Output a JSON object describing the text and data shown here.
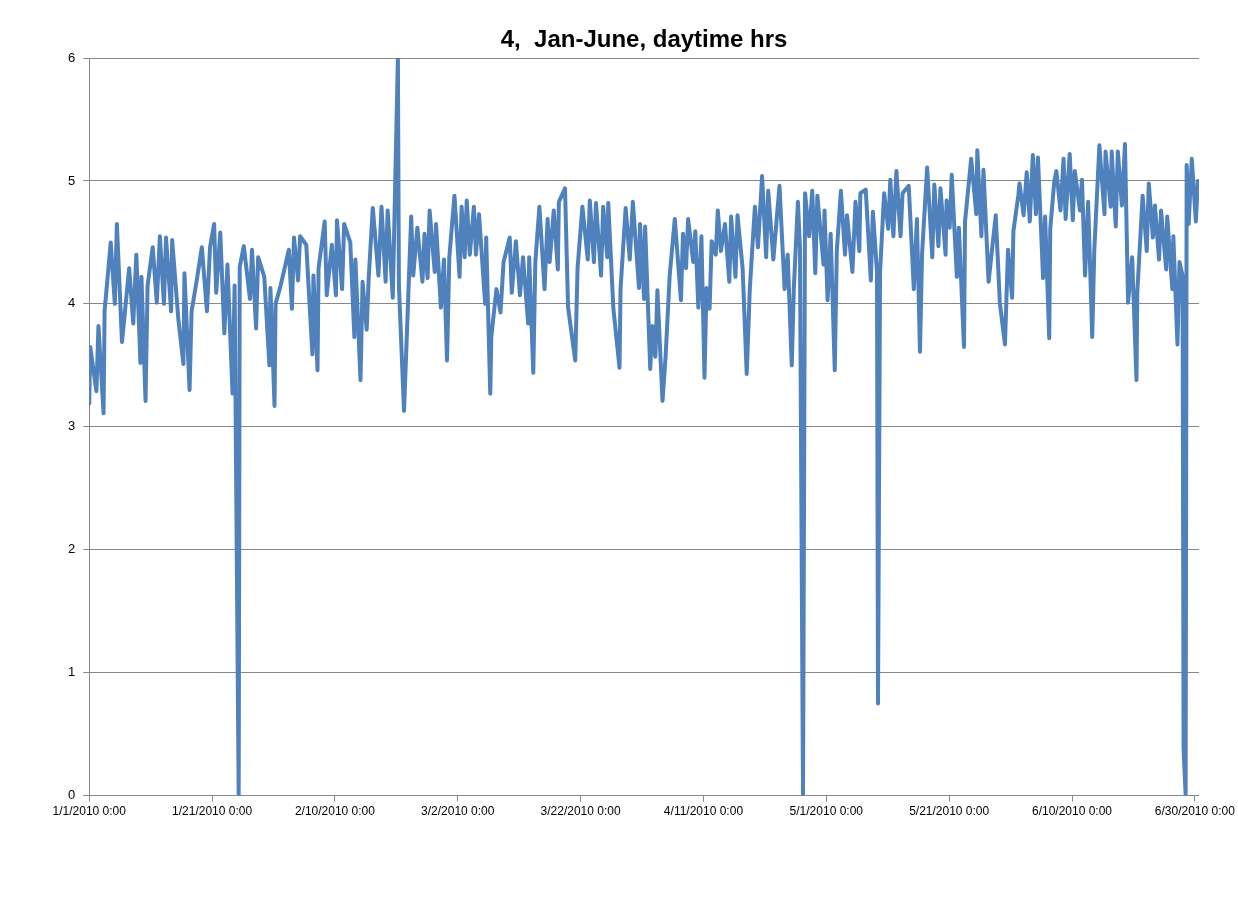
{
  "chart_data": {
    "type": "line",
    "title": "4,  Jan-June, daytime hrs",
    "color": "#4f81bd",
    "grid": "y",
    "marker": "none",
    "line_style": "solid",
    "xlim": [
      "2010-01-01T00:00",
      "2010-06-30T16:00"
    ],
    "xticks": [
      {
        "value": "2010-01-01T00:00",
        "label": "1/1/2010 0:00"
      },
      {
        "value": "2010-01-21T00:00",
        "label": "1/21/2010 0:00"
      },
      {
        "value": "2010-02-10T00:00",
        "label": "2/10/2010 0:00"
      },
      {
        "value": "2010-03-02T00:00",
        "label": "3/2/2010 0:00"
      },
      {
        "value": "2010-03-22T00:00",
        "label": "3/22/2010 0:00"
      },
      {
        "value": "2010-04-11T00:00",
        "label": "4/11/2010 0:00"
      },
      {
        "value": "2010-05-01T00:00",
        "label": "5/1/2010 0:00"
      },
      {
        "value": "2010-05-21T00:00",
        "label": "5/21/2010 0:00"
      },
      {
        "value": "2010-06-10T00:00",
        "label": "6/10/2010 0:00"
      },
      {
        "value": "2010-06-30T00:00",
        "label": "6/30/2010 0:00"
      }
    ],
    "ylim": [
      0,
      6
    ],
    "yticks": [
      0,
      1,
      2,
      3,
      4,
      5,
      6
    ],
    "x": [
      "2010-01-01T00:00",
      "2010-01-01T04:00",
      "2010-01-02T04:00",
      "2010-01-02T12:00",
      "2010-01-03T08:00",
      "2010-01-03T12:00",
      "2010-01-04T12:00",
      "2010-01-05T04:00",
      "2010-01-05T12:00",
      "2010-01-06T08:00",
      "2010-01-07T12:00",
      "2010-01-08T04:00",
      "2010-01-08T16:00",
      "2010-01-09T08:00",
      "2010-01-09T12:00",
      "2010-01-10T04:00",
      "2010-01-10T12:00",
      "2010-01-11T08:00",
      "2010-01-12T00:00",
      "2010-01-12T12:00",
      "2010-01-13T04:00",
      "2010-01-13T12:00",
      "2010-01-14T08:00",
      "2010-01-14T12:00",
      "2010-01-15T12:00",
      "2010-01-16T08:00",
      "2010-01-16T12:00",
      "2010-01-17T08:00",
      "2010-01-17T16:00",
      "2010-01-18T12:00",
      "2010-01-19T08:00",
      "2010-01-20T04:00",
      "2010-01-20T16:00",
      "2010-01-21T08:00",
      "2010-01-21T16:00",
      "2010-01-22T08:00",
      "2010-01-23T00:00",
      "2010-01-23T12:00",
      "2010-01-24T08:00",
      "2010-01-24T16:00",
      "2010-01-25T08:00",
      "2010-01-25T12:00",
      "2010-01-26T04:00",
      "2010-01-27T04:00",
      "2010-01-27T12:00",
      "2010-01-28T04:00",
      "2010-01-28T12:00",
      "2010-01-29T12:00",
      "2010-01-30T08:00",
      "2010-01-30T12:00",
      "2010-01-31T04:00",
      "2010-01-31T08:00",
      "2010-02-01T04:00",
      "2010-02-02T12:00",
      "2010-02-03T00:00",
      "2010-02-03T08:00",
      "2010-02-04T00:00",
      "2010-02-04T08:00",
      "2010-02-05T08:00",
      "2010-02-06T08:00",
      "2010-02-06T12:00",
      "2010-02-07T04:00",
      "2010-02-07T08:00",
      "2010-02-08T08:00",
      "2010-02-08T16:00",
      "2010-02-09T12:00",
      "2010-02-10T04:00",
      "2010-02-10T08:00",
      "2010-02-11T04:00",
      "2010-02-11T12:00",
      "2010-02-12T12:00",
      "2010-02-13T04:00",
      "2010-02-13T08:00",
      "2010-02-14T04:00",
      "2010-02-14T12:00",
      "2010-02-15T04:00",
      "2010-02-15T12:00",
      "2010-02-16T04:00",
      "2010-02-17T02:00",
      "2010-02-17T14:00",
      "2010-02-18T06:00",
      "2010-02-18T14:00",
      "2010-02-19T10:00",
      "2010-02-20T06:00",
      "2010-02-20T10:00",
      "2010-02-21T06:00",
      "2010-02-21T18:00",
      "2010-02-22T10:00",
      "2010-02-22T18:00",
      "2010-02-23T10:00",
      "2010-02-24T06:00",
      "2010-02-24T14:00",
      "2010-02-25T02:00",
      "2010-02-25T10:00",
      "2010-02-26T06:00",
      "2010-02-26T11:00",
      "2010-02-27T06:00",
      "2010-02-27T18:00",
      "2010-02-28T06:00",
      "2010-02-28T15:00",
      "2010-03-01T11:00",
      "2010-03-02T07:00",
      "2010-03-02T15:00",
      "2010-03-03T03:00",
      "2010-03-03T11:00",
      "2010-03-03T23:00",
      "2010-03-04T15:00",
      "2010-03-04T23:00",
      "2010-03-05T11:00",
      "2010-03-06T11:00",
      "2010-03-06T15:00",
      "2010-03-07T07:00",
      "2010-03-07T11:00",
      "2010-03-08T07:00",
      "2010-03-08T23:00",
      "2010-03-09T11:00",
      "2010-03-10T11:00",
      "2010-03-10T19:00",
      "2010-03-11T11:00",
      "2010-03-12T03:00",
      "2010-03-12T15:00",
      "2010-03-13T11:00",
      "2010-03-13T15:00",
      "2010-03-14T07:00",
      "2010-03-14T15:00",
      "2010-03-15T07:00",
      "2010-03-16T03:00",
      "2010-03-16T15:00",
      "2010-03-16T23:00",
      "2010-03-17T15:00",
      "2010-03-18T07:00",
      "2010-03-18T11:00",
      "2010-03-19T11:00",
      "2010-03-19T23:00",
      "2010-03-21T03:00",
      "2010-03-21T12:00",
      "2010-03-22T07:00",
      "2010-03-23T04:00",
      "2010-03-23T12:00",
      "2010-03-24T04:00",
      "2010-03-24T12:00",
      "2010-03-25T08:00",
      "2010-03-25T16:00",
      "2010-03-26T08:00",
      "2010-03-26T12:00",
      "2010-03-27T08:00",
      "2010-03-28T08:00",
      "2010-03-28T12:00",
      "2010-03-29T08:00",
      "2010-03-30T00:00",
      "2010-03-30T12:00",
      "2010-03-31T12:00",
      "2010-03-31T16:00",
      "2010-04-01T08:00",
      "2010-04-01T12:00",
      "2010-04-02T08:00",
      "2010-04-02T16:00",
      "2010-04-03T04:00",
      "2010-04-03T12:00",
      "2010-04-04T08:00",
      "2010-04-04T20:00",
      "2010-04-05T12:00",
      "2010-04-06T08:00",
      "2010-04-07T08:00",
      "2010-04-07T16:00",
      "2010-04-08T04:00",
      "2010-04-08T12:00",
      "2010-04-09T08:00",
      "2010-04-09T16:00",
      "2010-04-10T04:00",
      "2010-04-10T16:00",
      "2010-04-11T04:00",
      "2010-04-11T12:00",
      "2010-04-12T00:00",
      "2010-04-12T08:00",
      "2010-04-13T00:00",
      "2010-04-13T08:00",
      "2010-04-13T20:00",
      "2010-04-14T12:00",
      "2010-04-15T05:00",
      "2010-04-15T12:00",
      "2010-04-16T05:00",
      "2010-04-16T13:00",
      "2010-04-17T09:00",
      "2010-04-18T01:00",
      "2010-04-18T13:00",
      "2010-04-19T09:00",
      "2010-04-19T21:00",
      "2010-04-20T13:00",
      "2010-04-21T05:00",
      "2010-04-21T13:00",
      "2010-04-22T09:00",
      "2010-04-23T09:00",
      "2010-04-24T05:00",
      "2010-04-24T17:00",
      "2010-04-25T09:00",
      "2010-04-25T17:00",
      "2010-04-26T09:00",
      "2010-04-26T17:00",
      "2010-04-27T05:00",
      "2010-04-27T13:00",
      "2010-04-28T05:00",
      "2010-04-28T17:00",
      "2010-04-29T05:00",
      "2010-04-29T13:00",
      "2010-04-30T13:00",
      "2010-04-30T17:00",
      "2010-05-01T05:00",
      "2010-05-01T17:00",
      "2010-05-02T09:00",
      "2010-05-02T17:00",
      "2010-05-03T09:00",
      "2010-05-04T01:00",
      "2010-05-04T09:00",
      "2010-05-05T06:00",
      "2010-05-05T18:00",
      "2010-05-06T09:00",
      "2010-05-06T13:00",
      "2010-05-07T10:00",
      "2010-05-08T06:00",
      "2010-05-08T14:00",
      "2010-05-09T06:00",
      "2010-05-09T10:00",
      "2010-05-09T18:00",
      "2010-05-10T10:00",
      "2010-05-11T02:00",
      "2010-05-11T10:00",
      "2010-05-11T22:00",
      "2010-05-12T10:00",
      "2010-05-13T02:00",
      "2010-05-13T10:00",
      "2010-05-14T10:00",
      "2010-05-15T06:00",
      "2010-05-15T18:00",
      "2010-05-16T06:00",
      "2010-05-16T14:00",
      "2010-05-17T10:00",
      "2010-05-18T06:00",
      "2010-05-18T14:00",
      "2010-05-19T06:00",
      "2010-05-19T14:00",
      "2010-05-20T10:00",
      "2010-05-20T14:00",
      "2010-05-21T02:00",
      "2010-05-21T10:00",
      "2010-05-22T06:00",
      "2010-05-22T14:00",
      "2010-05-23T10:00",
      "2010-05-23T14:00",
      "2010-05-24T06:00",
      "2010-05-24T14:00",
      "2010-05-25T10:00",
      "2010-05-25T14:00",
      "2010-05-26T06:00",
      "2010-05-26T14:00",
      "2010-05-27T10:00",
      "2010-05-28T14:00",
      "2010-05-29T06:00",
      "2010-05-30T02:00",
      "2010-05-30T14:00",
      "2010-05-31T06:00",
      "2010-05-31T11:00",
      "2010-06-01T06:00",
      "2010-06-01T11:00",
      "2010-06-02T03:00",
      "2010-06-02T15:00",
      "2010-06-03T03:00",
      "2010-06-03T15:00",
      "2010-06-04T03:00",
      "2010-06-04T11:00",
      "2010-06-05T07:00",
      "2010-06-05T15:00",
      "2010-06-06T07:00",
      "2010-06-06T11:00",
      "2010-06-07T03:00",
      "2010-06-07T11:00",
      "2010-06-08T03:00",
      "2010-06-08T15:00",
      "2010-06-08T23:00",
      "2010-06-09T15:00",
      "2010-06-10T03:00",
      "2010-06-10T11:00",
      "2010-06-11T07:00",
      "2010-06-11T15:00",
      "2010-06-12T03:00",
      "2010-06-12T15:00",
      "2010-06-13T07:00",
      "2010-06-13T15:00",
      "2010-06-14T11:00",
      "2010-06-15T07:00",
      "2010-06-15T11:00",
      "2010-06-16T07:00",
      "2010-06-16T11:00",
      "2010-06-17T03:00",
      "2010-06-17T11:00",
      "2010-06-18T03:00",
      "2010-06-18T15:00",
      "2010-06-19T03:00",
      "2010-06-19T19:00",
      "2010-06-20T12:00",
      "2010-06-20T15:00",
      "2010-06-21T12:00",
      "2010-06-22T04:00",
      "2010-06-22T12:00",
      "2010-06-23T04:00",
      "2010-06-23T12:00",
      "2010-06-24T04:00",
      "2010-06-24T12:00",
      "2010-06-25T08:00",
      "2010-06-25T12:00",
      "2010-06-26T08:00",
      "2010-06-26T12:00",
      "2010-06-27T04:00",
      "2010-06-27T12:00",
      "2010-06-28T00:00",
      "2010-06-28T04:00",
      "2010-06-28T12:00",
      "2010-06-28T16:00",
      "2010-06-29T00:00",
      "2010-06-29T12:00",
      "2010-06-30T04:00",
      "2010-06-30T12:00"
    ],
    "values": [
      3.19,
      3.65,
      3.29,
      3.82,
      3.11,
      3.94,
      4.5,
      4.0,
      4.65,
      3.69,
      4.29,
      3.84,
      4.4,
      3.52,
      4.22,
      3.21,
      4.15,
      4.46,
      4.01,
      4.55,
      4.0,
      4.54,
      3.94,
      4.52,
      3.88,
      3.51,
      4.25,
      3.3,
      3.94,
      4.19,
      4.46,
      3.94,
      4.46,
      4.65,
      4.09,
      4.58,
      3.76,
      4.32,
      3.27,
      4.15,
      0,
      4.3,
      4.47,
      4.04,
      4.44,
      3.8,
      4.38,
      4.22,
      3.5,
      4.13,
      3.17,
      4.0,
      4.15,
      4.44,
      3.96,
      4.54,
      4.19,
      4.55,
      4.48,
      3.59,
      4.23,
      3.46,
      4.29,
      4.67,
      4.07,
      4.48,
      4.07,
      4.68,
      4.12,
      4.65,
      4.5,
      3.73,
      4.36,
      3.38,
      4.18,
      3.79,
      4.21,
      4.78,
      4.23,
      4.79,
      4.18,
      4.76,
      4.05,
      6,
      4.15,
      3.13,
      3.8,
      4.71,
      4.23,
      4.62,
      4.18,
      4.57,
      4.21,
      4.76,
      4.26,
      4.65,
      3.97,
      4.36,
      3.54,
      4.38,
      4.88,
      4.22,
      4.79,
      4.38,
      4.84,
      4.4,
      4.79,
      4.4,
      4.73,
      4.0,
      4.54,
      3.27,
      3.73,
      4.12,
      3.93,
      4.34,
      4.54,
      4.09,
      4.51,
      4.07,
      4.38,
      3.84,
      4.38,
      3.44,
      4.34,
      4.79,
      4.12,
      4.69,
      4.34,
      4.76,
      4.28,
      4.83,
      4.94,
      3.97,
      3.54,
      4.29,
      4.79,
      4.36,
      4.84,
      4.34,
      4.82,
      4.23,
      4.79,
      4.38,
      4.82,
      3.96,
      3.48,
      4.12,
      4.78,
      4.36,
      4.83,
      4.13,
      4.65,
      4.04,
      4.63,
      3.47,
      3.82,
      3.57,
      4.11,
      3.21,
      3.57,
      4.23,
      4.69,
      4.03,
      4.57,
      4.29,
      4.69,
      4.34,
      4.59,
      3.97,
      4.55,
      3.4,
      4.13,
      3.96,
      4.51,
      4.4,
      4.76,
      4.43,
      4.65,
      4.18,
      4.71,
      4.22,
      4.72,
      4.29,
      3.43,
      4.12,
      4.79,
      4.46,
      5.04,
      4.38,
      4.92,
      4.36,
      4.96,
      4.12,
      4.4,
      3.5,
      4.12,
      4.83,
      4.46,
      0,
      4.9,
      4.55,
      4.92,
      4.25,
      4.88,
      4.32,
      4.76,
      4.03,
      4.57,
      3.46,
      4.43,
      4.92,
      4.4,
      4.72,
      4.26,
      4.83,
      4.43,
      4.9,
      4.93,
      4.19,
      4.75,
      4.26,
      0.75,
      4.26,
      4.9,
      4.61,
      5.01,
      4.55,
      5.08,
      4.55,
      4.9,
      4.96,
      4.12,
      4.69,
      3.61,
      4.4,
      5.11,
      4.38,
      4.97,
      4.47,
      4.94,
      4.4,
      4.84,
      4.62,
      5.05,
      4.22,
      4.62,
      3.65,
      4.67,
      5.01,
      5.18,
      4.73,
      5.25,
      4.55,
      5.09,
      4.18,
      4.72,
      4.01,
      3.67,
      4.44,
      4.05,
      4.59,
      4.88,
      4.98,
      4.72,
      5.07,
      4.67,
      5.21,
      4.73,
      5.19,
      4.21,
      4.71,
      3.72,
      4.61,
      5.0,
      5.08,
      4.76,
      5.18,
      4.69,
      5.22,
      4.68,
      5.08,
      4.76,
      5.01,
      4.23,
      4.83,
      3.73,
      4.43,
      5.29,
      4.73,
      5.24,
      4.79,
      5.24,
      4.63,
      5.24,
      4.8,
      5.3,
      4.01,
      4.38,
      3.38,
      4.09,
      4.88,
      4.43,
      4.98,
      4.54,
      4.8,
      4.36,
      4.76,
      4.28,
      4.71,
      4.12,
      4.55,
      3.67,
      4.34,
      4.23,
      0.38,
      0,
      5.13,
      4.65,
      5.18,
      4.67,
      5.0
    ]
  }
}
